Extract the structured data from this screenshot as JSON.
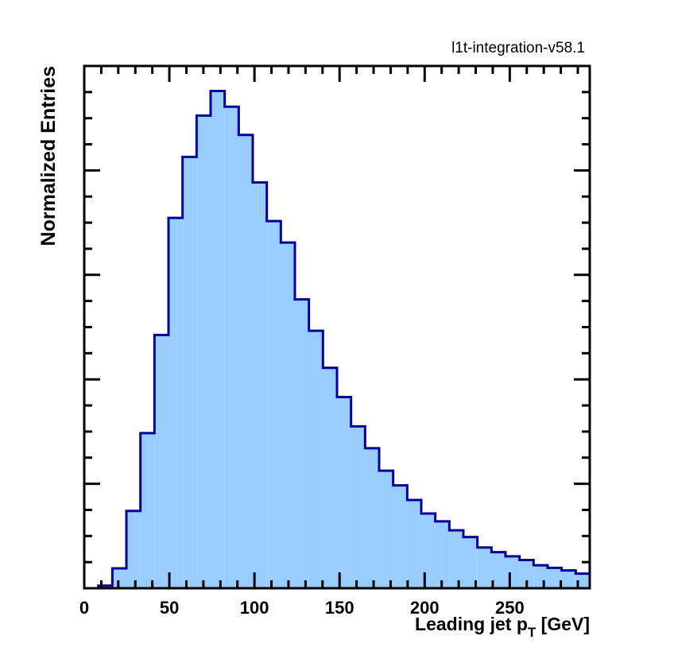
{
  "chart_data": {
    "type": "histogram",
    "version_tag": "l1t-integration-v58.1",
    "xlabel_main": "Leading jet p",
    "xlabel_sub": "T",
    "xlabel_unit": " [GeV]",
    "ylabel": "Normalized Entries",
    "xlim": [
      0,
      297
    ],
    "ylim": [
      0,
      1.0
    ],
    "x_ticks": [
      0,
      50,
      100,
      150,
      200,
      250
    ],
    "x_tick_labels": [
      "0",
      "50",
      "100",
      "150",
      "200",
      "250"
    ],
    "bin_edges": [
      0,
      8.25,
      16.5,
      24.75,
      33,
      41.25,
      49.5,
      57.75,
      66,
      74.25,
      82.5,
      90.75,
      99,
      107.25,
      115.5,
      123.75,
      132,
      140.25,
      148.5,
      156.75,
      165,
      173.25,
      181.5,
      189.75,
      198,
      206.25,
      214.5,
      222.75,
      231,
      239.25,
      247.5,
      255.75,
      264,
      272.25,
      280.5,
      288.75,
      297
    ],
    "values": [
      0.0,
      0.005,
      0.038,
      0.148,
      0.297,
      0.485,
      0.709,
      0.826,
      0.905,
      0.952,
      0.922,
      0.868,
      0.777,
      0.703,
      0.662,
      0.553,
      0.493,
      0.422,
      0.366,
      0.31,
      0.268,
      0.225,
      0.197,
      0.169,
      0.143,
      0.128,
      0.111,
      0.098,
      0.078,
      0.069,
      0.061,
      0.054,
      0.044,
      0.039,
      0.034,
      0.028
    ],
    "fill_color": "#99ccff",
    "line_color": "#000099",
    "grid": false,
    "legend": "none"
  }
}
